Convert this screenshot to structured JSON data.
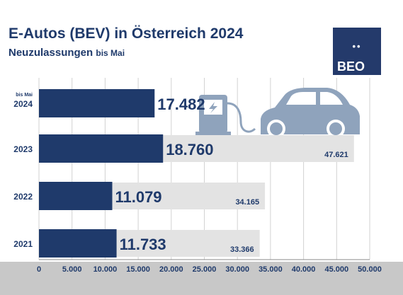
{
  "header": {
    "title": "E-Autos (BEV) in Österreich 2024",
    "subtitle_main": "Neuzulassungen",
    "subtitle_note": "bis Mai"
  },
  "logo": {
    "dots": "••",
    "text": "BEO",
    "color": "#243a6b"
  },
  "colors": {
    "primary_bar": "#1f3a6b",
    "total_bar": "#e3e3e3",
    "label_dark": "#1f3a6b",
    "icon": "#8fa3bc",
    "bottom_band": "#c8c8c8"
  },
  "decor": {
    "icons": [
      "charging-station-icon",
      "car-icon"
    ]
  },
  "chart_data": {
    "type": "bar",
    "orientation": "horizontal",
    "categories": [
      "2024",
      "2023",
      "2022",
      "2021"
    ],
    "category_notes": [
      "bis Mai",
      "",
      "",
      ""
    ],
    "series": [
      {
        "role": "bis-mai",
        "values": [
          17482,
          18760,
          11079,
          11733
        ],
        "labels": [
          "17.482",
          "18.760",
          "11.079",
          "11.733"
        ]
      },
      {
        "role": "gesamt",
        "values": [
          null,
          47621,
          34165,
          33366
        ],
        "labels": [
          "",
          "47.621",
          "34.165",
          "33.366"
        ]
      }
    ],
    "xlim": [
      0,
      50000
    ],
    "xticks": [
      0,
      5000,
      10000,
      15000,
      20000,
      25000,
      30000,
      35000,
      40000,
      45000,
      50000
    ],
    "xtick_labels": [
      "0",
      "5.000",
      "10.000",
      "15.000",
      "20.000",
      "25.000",
      "30.000",
      "35.000",
      "40.000",
      "45.000",
      "50.000"
    ],
    "grid": true,
    "legend": "none"
  }
}
